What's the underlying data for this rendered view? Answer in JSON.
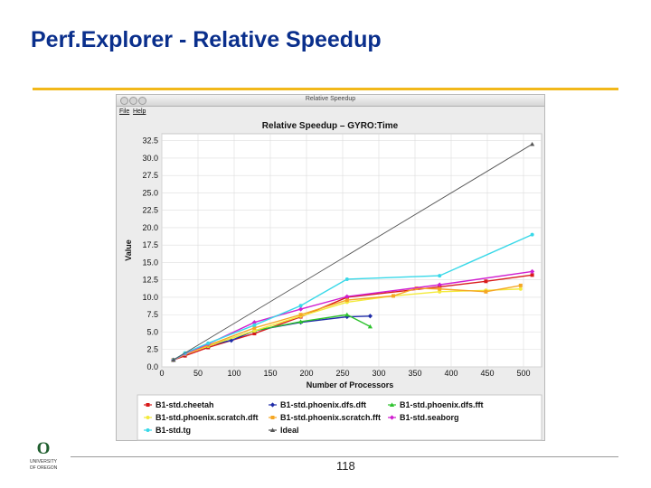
{
  "slide": {
    "title": "Perf.Explorer - Relative Speedup",
    "page_number": "118"
  },
  "window": {
    "title": "Relative Speedup",
    "menu": [
      "File",
      "Help"
    ]
  },
  "colors": {
    "title": "#0a2f8c",
    "accent_rule": "#f2b81a",
    "logo_green": "#1f5e2e"
  },
  "logo": {
    "letter": "O",
    "lines": [
      "UNIVERSITY",
      "OF OREGON"
    ]
  },
  "chart_data": {
    "type": "line",
    "title": "Relative Speedup – GYRO:Time",
    "xlabel": "Number of Processors",
    "ylabel": "Value",
    "xlim": [
      0,
      525
    ],
    "ylim": [
      0,
      33.5
    ],
    "x_ticks": [
      "0",
      "50",
      "100",
      "150",
      "200",
      "250",
      "300",
      "350",
      "400",
      "450",
      "500"
    ],
    "y_ticks": [
      "0.0",
      "2.5",
      "5.0",
      "7.5",
      "10.0",
      "12.5",
      "15.0",
      "17.5",
      "20.0",
      "22.5",
      "25.0",
      "27.5",
      "30.0",
      "32.5"
    ],
    "grid": true,
    "legend_position": "bottom",
    "series": [
      {
        "name": "B1-std.cheetah",
        "color": "#d81b1b",
        "marker": "square",
        "x": [
          16,
          32,
          64,
          128,
          192,
          256,
          384,
          448,
          512
        ],
        "y": [
          1,
          1.6,
          2.8,
          4.8,
          7.2,
          10,
          11.5,
          12.3,
          13.2
        ]
      },
      {
        "name": "B1-std.phoenix.dfs.dft",
        "color": "#1f2ca8",
        "marker": "diamond",
        "x": [
          16,
          32,
          64,
          96,
          128,
          192,
          256,
          288
        ],
        "y": [
          1,
          1.8,
          3.1,
          3.8,
          5.2,
          6.4,
          7.2,
          7.3
        ]
      },
      {
        "name": "B1-std.phoenix.dfs.fft",
        "color": "#2cc22c",
        "marker": "triangle",
        "x": [
          16,
          32,
          64,
          128,
          192,
          256,
          288
        ],
        "y": [
          1,
          1.9,
          3,
          5.2,
          6.5,
          7.5,
          5.8
        ]
      },
      {
        "name": "B1-std.phoenix.scratch.dft",
        "color": "#f3ea3a",
        "marker": "circle",
        "x": [
          16,
          32,
          64,
          128,
          192,
          256,
          320,
          384,
          448,
          496
        ],
        "y": [
          1,
          1.8,
          3,
          5.2,
          7.3,
          9.3,
          10.2,
          10.8,
          11,
          11.2
        ]
      },
      {
        "name": "B1-std.phoenix.scratch.fft",
        "color": "#f5a623",
        "marker": "square",
        "x": [
          16,
          32,
          64,
          128,
          192,
          256,
          320,
          352,
          384,
          448,
          496
        ],
        "y": [
          1,
          1.9,
          3.1,
          5.6,
          7.5,
          9.6,
          10.2,
          11.3,
          11.2,
          10.8,
          11.7
        ]
      },
      {
        "name": "B1-std.seaborg",
        "color": "#d01fd0",
        "marker": "diamond",
        "x": [
          16,
          32,
          64,
          128,
          192,
          256,
          384,
          512
        ],
        "y": [
          1,
          1.9,
          3.3,
          6.4,
          8.3,
          10.1,
          11.8,
          13.7
        ]
      },
      {
        "name": "B1-std.tg",
        "color": "#38d8e8",
        "marker": "circle",
        "x": [
          16,
          32,
          64,
          128,
          192,
          256,
          384,
          512
        ],
        "y": [
          1,
          2,
          3.4,
          6,
          8.8,
          12.6,
          13.1,
          19
        ]
      },
      {
        "name": "Ideal",
        "color": "#555555",
        "marker": "triangle",
        "x": [
          16,
          512
        ],
        "y": [
          1,
          32
        ]
      }
    ]
  }
}
